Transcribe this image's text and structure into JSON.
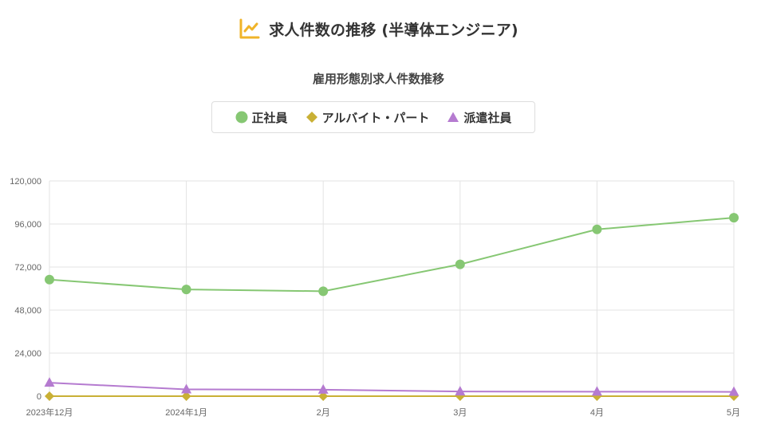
{
  "header": {
    "title": "求人件数の推移 (半導体エンジニア)",
    "icon": "line-chart-icon",
    "icon_color": "#f0b429"
  },
  "chart_data": {
    "type": "line",
    "subtitle": "雇用形態別求人件数推移",
    "categories": [
      "2023年12月",
      "2024年1月",
      "2月",
      "3月",
      "4月",
      "5月"
    ],
    "series": [
      {
        "name": "正社員",
        "color": "#86c773",
        "marker": "circle",
        "values": [
          65000,
          59500,
          58500,
          73500,
          93000,
          99500
        ]
      },
      {
        "name": "アルバイト・パート",
        "color": "#c9b035",
        "marker": "diamond",
        "values": [
          0,
          0,
          0,
          0,
          0,
          0
        ]
      },
      {
        "name": "派遣社員",
        "color": "#b57bd0",
        "marker": "triangle",
        "values": [
          7500,
          3800,
          3600,
          2600,
          2500,
          2400
        ]
      }
    ],
    "ylim": [
      0,
      120000
    ],
    "yticks": [
      "0",
      "24,000",
      "48,000",
      "72,000",
      "96,000",
      "120,000"
    ],
    "ytick_values": [
      0,
      24000,
      48000,
      72000,
      96000,
      120000
    ],
    "grid": true,
    "legend_position": "top-center"
  }
}
